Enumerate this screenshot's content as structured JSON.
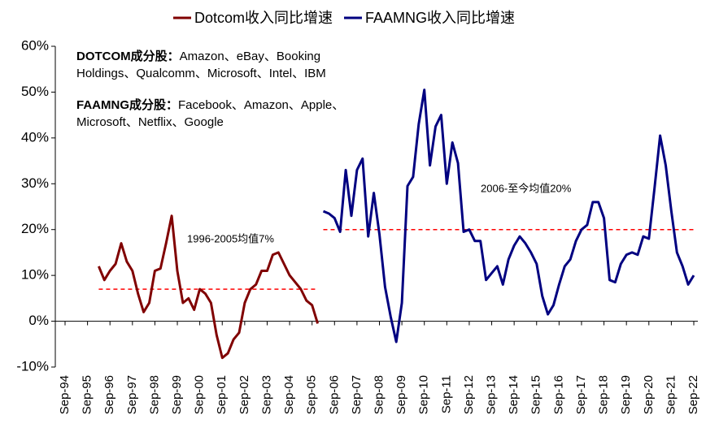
{
  "chart_data": {
    "type": "line",
    "categories": [
      "Sep-94",
      null,
      null,
      null,
      "Sep-95",
      null,
      null,
      null,
      "Sep-96",
      null,
      null,
      null,
      "Sep-97",
      null,
      null,
      null,
      "Sep-98",
      null,
      null,
      null,
      "Sep-99",
      null,
      null,
      null,
      "Sep-00",
      null,
      null,
      null,
      "Sep-01",
      null,
      null,
      null,
      "Sep-02",
      null,
      null,
      null,
      "Sep-03",
      null,
      null,
      null,
      "Sep-04",
      null,
      null,
      null,
      "Sep-05",
      null,
      null,
      null,
      "Sep-06",
      null,
      null,
      null,
      "Sep-07",
      null,
      null,
      null,
      "Sep-08",
      null,
      null,
      null,
      "Sep-09",
      null,
      null,
      null,
      "Sep-10",
      null,
      null,
      null,
      "Sep-11",
      null,
      null,
      null,
      "Sep-12",
      null,
      null,
      null,
      "Sep-13",
      null,
      null,
      null,
      "Sep-14",
      null,
      null,
      null,
      "Sep-15",
      null,
      null,
      null,
      "Sep-16",
      null,
      null,
      null,
      "Sep-17",
      null,
      null,
      null,
      "Sep-18",
      null,
      null,
      null,
      "Sep-19",
      null,
      null,
      null,
      "Sep-20",
      null,
      null,
      null,
      "Sep-21",
      null,
      null,
      null,
      "Sep-22"
    ],
    "series": [
      {
        "name": "Dotcom收入同比增速",
        "color": "#800000",
        "values": [
          null,
          null,
          null,
          null,
          null,
          null,
          12,
          9,
          11,
          12.5,
          17,
          13,
          11,
          6,
          2,
          4,
          11,
          11.5,
          17,
          23,
          11,
          4,
          5,
          2.5,
          7,
          6,
          4,
          -3,
          -8,
          -7,
          -4,
          -2.5,
          4,
          7,
          8,
          11,
          11,
          14.5,
          15,
          12.5,
          10,
          8.5,
          7,
          4.5,
          3.5,
          -0.5,
          null,
          null,
          null,
          null,
          null,
          null,
          null,
          null,
          null,
          null,
          null,
          null,
          null,
          null,
          null,
          null,
          null,
          null,
          null,
          null,
          null,
          null,
          null,
          null,
          null,
          null,
          null,
          null,
          null,
          null,
          null,
          null,
          null,
          null,
          null,
          null,
          null,
          null,
          null,
          null,
          null,
          null,
          null,
          null,
          null,
          null,
          null,
          null,
          null,
          null,
          null,
          null,
          null,
          null,
          null,
          null,
          null,
          null,
          null,
          null,
          null,
          null,
          null,
          null,
          null,
          null,
          null
        ]
      },
      {
        "name": "FAAMNG收入同比增速",
        "color": "#000080",
        "values": [
          null,
          null,
          null,
          null,
          null,
          null,
          null,
          null,
          null,
          null,
          null,
          null,
          null,
          null,
          null,
          null,
          null,
          null,
          null,
          null,
          null,
          null,
          null,
          null,
          null,
          null,
          null,
          null,
          null,
          null,
          null,
          null,
          null,
          null,
          null,
          null,
          null,
          null,
          null,
          null,
          null,
          null,
          null,
          null,
          null,
          null,
          24,
          23.5,
          22.5,
          19.5,
          33,
          23,
          33,
          35.5,
          18.5,
          28,
          19,
          7.5,
          1,
          -4.5,
          4,
          29.5,
          31.5,
          43,
          50.5,
          34,
          42.5,
          45,
          30,
          39,
          34.5,
          19.5,
          20,
          17.5,
          17.5,
          9,
          10.5,
          12,
          8,
          13.5,
          16.5,
          18.5,
          17,
          15,
          12.5,
          5.5,
          1.5,
          3.5,
          8,
          12,
          13.5,
          17.5,
          20,
          21,
          26,
          26,
          22.5,
          9,
          8.5,
          12.5,
          14.5,
          15,
          14.5,
          18.5,
          18,
          29,
          40.5,
          34,
          24,
          15,
          12,
          8,
          10
        ]
      }
    ],
    "reference_lines": [
      {
        "value": 7,
        "label": "1996-2005均值7%",
        "series": 0
      },
      {
        "value": 20,
        "label": "2006-至今均值20%",
        "series": 1
      }
    ],
    "annotations": [
      {
        "title": "DOTCOM成分股：",
        "lines": [
          "Amazon、eBay、Booking",
          "Holdings、Qualcomm、Microsoft、Intel、IBM"
        ]
      },
      {
        "title": "FAAMNG成分股：",
        "lines": [
          "Facebook、Amazon、Apple、",
          "Microsoft、Netflix、Google"
        ]
      }
    ],
    "ylim": [
      -10,
      60
    ],
    "yticks": [
      {
        "value": -10,
        "label": "-10%"
      },
      {
        "value": 0,
        "label": "0%"
      },
      {
        "value": 10,
        "label": "10%"
      },
      {
        "value": 20,
        "label": "20%"
      },
      {
        "value": 30,
        "label": "30%"
      },
      {
        "value": 40,
        "label": "40%"
      },
      {
        "value": 50,
        "label": "50%"
      },
      {
        "value": 60,
        "label": "60%"
      }
    ],
    "reference_color": "#ff0000",
    "legend": "top"
  }
}
